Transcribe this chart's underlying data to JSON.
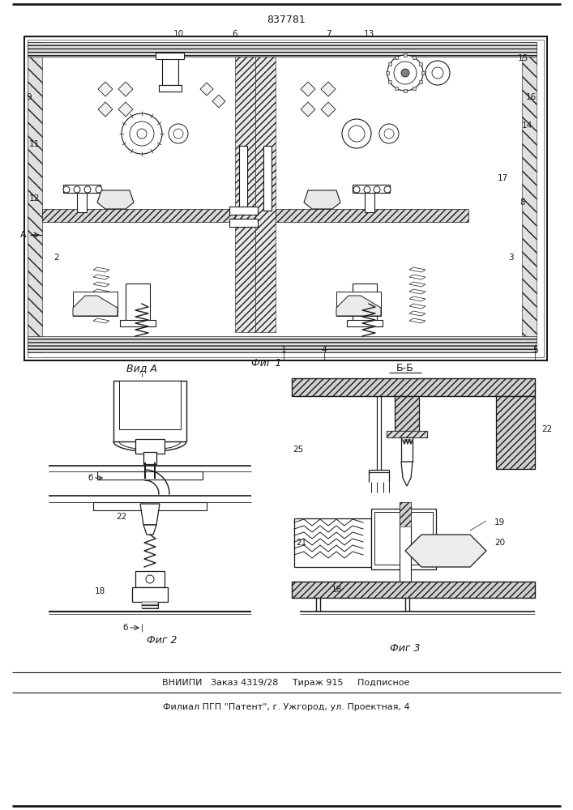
{
  "patent_number": "837781",
  "background_color": "#ffffff",
  "line_color": "#1a1a1a",
  "bottom_text_line1": "ВНИИПИ   Заказ 4319/28     Тираж 915     Подписное",
  "bottom_text_line2": "Филиал ПГП \"Патент\", г. Ужгород, ул. Проектная, 4",
  "fig1_label": "Фиг 1",
  "fig2_label": "Фиг 2",
  "fig3_label": "Фиг 3",
  "vid_a_label": "Вид А",
  "section_bb_label": "Б-Б"
}
